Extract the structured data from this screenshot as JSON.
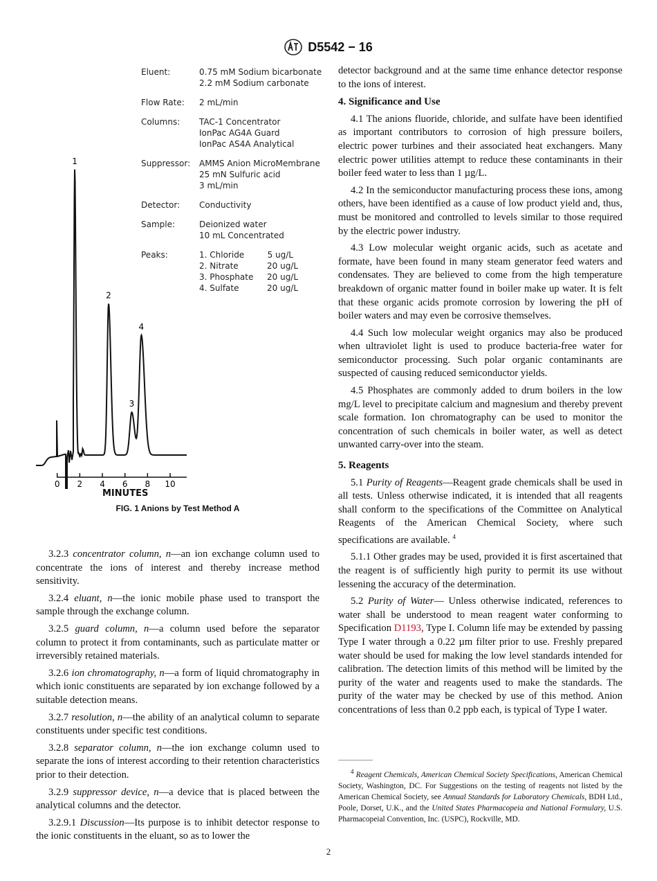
{
  "header": {
    "logo": "ASTM",
    "designation": "D5542 − 16"
  },
  "figure": {
    "caption": "FIG. 1  Anions by Test Method A",
    "x_axis_label": "MINUTES",
    "x_ticks": [
      "0",
      "2",
      "4",
      "6",
      "8",
      "10"
    ],
    "x_range": [
      0,
      10
    ],
    "legend": [
      {
        "label": "Eluent:",
        "values": [
          "0.75 mM Sodium bicarbonate",
          "2.2 mM Sodium carbonate"
        ]
      },
      {
        "label": "Flow Rate:",
        "values": [
          "2 mL/min"
        ]
      },
      {
        "label": "Columns:",
        "values": [
          "TAC-1 Concentrator",
          "IonPac AG4A Guard",
          "IonPac AS4A Analytical"
        ]
      },
      {
        "label": "Suppressor:",
        "values": [
          "AMMS Anion MicroMembrane",
          "25 mN Sulfuric acid",
          "3 mL/min"
        ]
      },
      {
        "label": "Detector:",
        "values": [
          "Conductivity"
        ]
      },
      {
        "label": "Sample:",
        "values": [
          "Deionized water",
          "10 mL Concentrated"
        ]
      }
    ],
    "peaks_label": "Peaks:",
    "peaks": [
      {
        "label": "1",
        "name": "1. Chloride",
        "conc": "5 ug/L",
        "retention_min": 1.55,
        "relative_height": 1.0
      },
      {
        "label": "2",
        "name": "2. Nitrate",
        "conc": "20 ug/L",
        "retention_min": 4.55,
        "relative_height": 0.53
      },
      {
        "label": "3",
        "name": "3. Phosphate",
        "conc": "20 ug/L",
        "retention_min": 6.6,
        "relative_height": 0.15
      },
      {
        "label": "4",
        "name": "4. Sulfate",
        "conc": "20 ug/L",
        "retention_min": 7.45,
        "relative_height": 0.42
      }
    ]
  },
  "left_column": [
    {
      "num": "3.2.3",
      "term": "concentrator column, n",
      "text": "—an ion exchange column used to concentrate the ions of interest and thereby increase method sensitivity."
    },
    {
      "num": "3.2.4",
      "term": "eluant, n",
      "text": "—the ionic mobile phase used to transport the sample through the exchange column."
    },
    {
      "num": "3.2.5",
      "term": "guard column, n",
      "text": "—a column used before the separator column to protect it from contaminants, such as particulate matter or irreversibly retained materials."
    },
    {
      "num": "3.2.6",
      "term": "ion chromatography, n",
      "text": "—a form of liquid chromatography in which ionic constituents are separated by ion exchange followed by a suitable detection means."
    },
    {
      "num": "3.2.7",
      "term": "resolution, n",
      "text": "—the ability of an analytical column to separate constituents under specific test conditions."
    },
    {
      "num": "3.2.8",
      "term": "separator column, n",
      "text": "—the ion exchange column used to separate the ions of interest according to their retention characteristics prior to their detection."
    },
    {
      "num": "3.2.9",
      "term": "suppressor device, n",
      "text": "—a device that is placed between the analytical columns and the detector."
    },
    {
      "num": "3.2.9.1",
      "term": "Discussion",
      "text": "—Its purpose is to inhibit detector response to the ionic constituents in the eluant, so as to lower the"
    }
  ],
  "right_column": {
    "continuation": "detector background and at the same time enhance detector response to the ions of interest.",
    "section4_title": "4. Significance and Use",
    "s4": [
      "4.1 The anions fluoride, chloride, and sulfate have been identified as important contributors to corrosion of high pressure boilers, electric power turbines and their associated heat exchangers. Many electric power utilities attempt to reduce these contaminants in their boiler feed water to less than 1 µg/L.",
      "4.2 In the semiconductor manufacturing process these ions, among others, have been identified as a cause of low product yield and, thus, must be monitored and controlled to levels similar to those required by the electric power industry.",
      "4.3 Low molecular weight organic acids, such as acetate and formate, have been found in many steam generator feed waters and condensates. They are believed to come from the high temperature breakdown of organic matter found in boiler make up water. It is felt that these organic acids promote corrosion by lowering the pH of boiler waters and may even be corrosive themselves.",
      "4.4 Such low molecular weight organics may also be produced when ultraviolet light is used to produce bacteria-free water for semiconductor processing. Such polar organic contaminants are suspected of causing reduced semiconductor yields.",
      "4.5 Phosphates are commonly added to drum boilers in the low mg/L level to precipitate calcium and magnesium and thereby prevent scale formation. Ion chromatography can be used to monitor the concentration of such chemicals in boiler water, as well as detect unwanted carry-over into the steam."
    ],
    "section5_title": "5. Reagents",
    "s51_num": "5.1",
    "s51_term": "Purity of Reagents",
    "s51_text": "—Reagent grade chemicals shall be used in all tests. Unless otherwise indicated, it is intended that all reagents shall conform to the specifications of the Committee on Analytical Reagents of the American Chemical Society, where such specifications are available.",
    "s51_fn": "4",
    "s511": "5.1.1 Other grades may be used, provided it is first ascertained that the reagent is of sufficiently high purity to permit its use without lessening the accuracy of the determination.",
    "s52_num": "5.2",
    "s52_term": "Purity of Water",
    "s52_a": "— Unless otherwise indicated, references to water shall be understood to mean reagent water conforming to Specification ",
    "s52_link": "D1193",
    "s52_b": ", Type I. Column life may be extended by passing Type I water through a 0.22 µm filter prior to use. Freshly prepared water should be used for making the low level standards intended for calibration. The detection limits of this method will be limited by the purity of the water and reagents used to make the standards. The purity of the water may be checked by use of this method. Anion concentrations of less than 0.2 ppb each, is typical of Type I water."
  },
  "footnote": {
    "mark": "4",
    "i1": "Reagent Chemicals, American Chemical Society Specifications",
    "t1": ", American Chemical Society, Washington, DC. For Suggestions on the testing of reagents not listed by the American Chemical Society, see ",
    "i2": "Annual Standards for Laboratory Chemicals,",
    "t2": " BDH Ltd., Poole, Dorset, U.K., and the ",
    "i3": "United States Pharmacopeia and National Formulary,",
    "t3": " U.S. Pharmacopeial Convention, Inc. (USPC), Rockville, MD."
  },
  "page_number": "2",
  "colors": {
    "link": "#c8102e",
    "text": "#111111"
  }
}
